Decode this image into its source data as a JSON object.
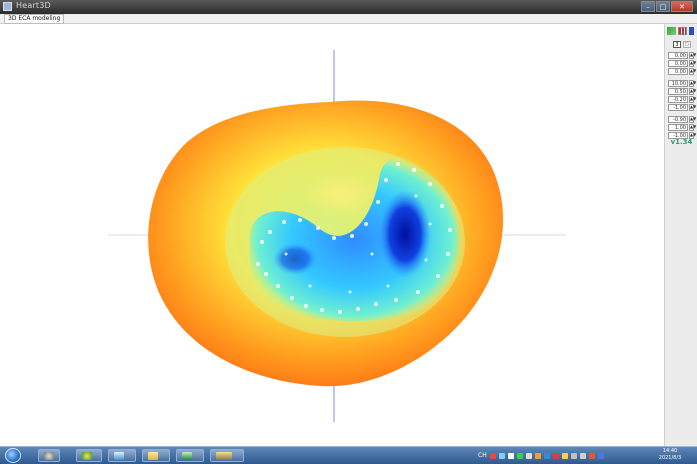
{
  "window": {
    "title": "Heart3D",
    "min_label": "–",
    "max_label": "□",
    "close_label": "✕"
  },
  "menu": {
    "tab_label": "3D ECA modeling"
  },
  "panel": {
    "mode_label_1": "3",
    "mode_label_2": "D",
    "fields_group_1": [
      "0.00",
      "0.00",
      "0.00"
    ],
    "fields_group_2": [
      "10.00",
      "0.50",
      "-0.20",
      "-1.00"
    ],
    "fields_group_3": [
      "-0.90",
      "1.00",
      "-1.00"
    ],
    "version": "v1.34"
  },
  "taskbar": {
    "tray_lang": "CH",
    "clock_time": "14:40",
    "clock_date": "2021/8/3"
  },
  "colors": {
    "outer_shell": "#ff7a1a",
    "mid_ring": "#ffe040",
    "inner_region": "#2a9cff",
    "deep_region": "#0a1fb8",
    "crosshair": "#7e8ede"
  }
}
